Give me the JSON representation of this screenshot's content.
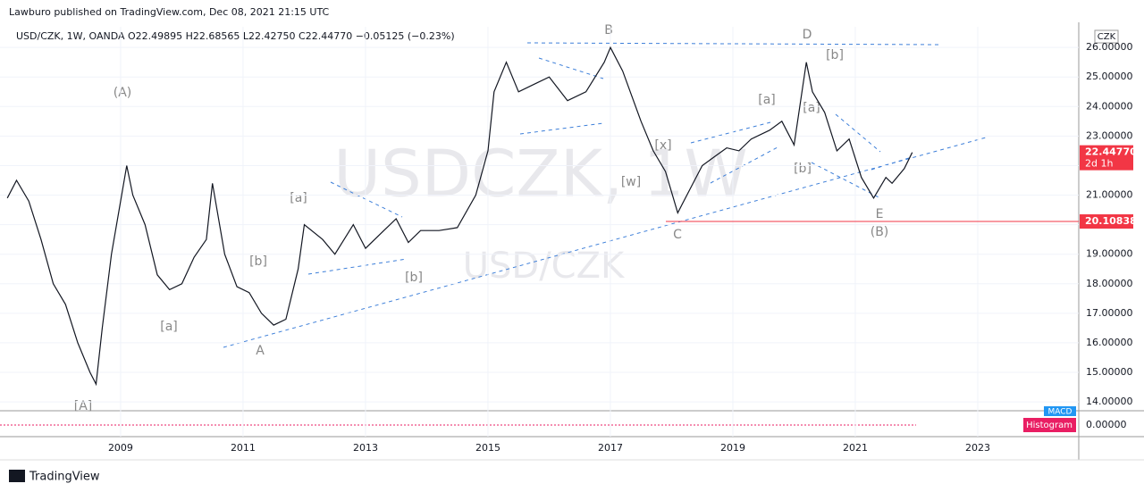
{
  "header": {
    "publisher": "Lawburo published on TradingView.com, Dec 08, 2021 21:15 UTC",
    "symbol_line": "USD/CZK, 1W, OANDA  O22.49895 H22.68565 L22.42750 C22.44770 −0.05125 (−0.23%)",
    "watermark": "USDCZK, 1W",
    "watermark2": "USD/CZK"
  },
  "footer": {
    "brand": "TradingView"
  },
  "annotations": [
    "(A)",
    "[A]",
    "[a]",
    "[b]",
    "A",
    "[a]",
    "[b]",
    "B",
    "C",
    "[w]",
    "[x]",
    "[a]",
    "D",
    "[b]",
    "[a]",
    "[b]",
    "E",
    "(B)"
  ],
  "chart_data": {
    "type": "line",
    "currency": "CZK",
    "color": "#131722",
    "x": [
      2007.15,
      2007.3,
      2007.5,
      2007.7,
      2007.9,
      2008.1,
      2008.3,
      2008.5,
      2008.6,
      2008.7,
      2008.85,
      2009.1,
      2009.2,
      2009.4,
      2009.6,
      2009.8,
      2010.0,
      2010.2,
      2010.4,
      2010.5,
      2010.7,
      2010.9,
      2011.1,
      2011.3,
      2011.5,
      2011.7,
      2011.9,
      2012.0,
      2012.3,
      2012.5,
      2012.8,
      2013.0,
      2013.3,
      2013.5,
      2013.7,
      2013.9,
      2014.2,
      2014.5,
      2014.8,
      2015.0,
      2015.1,
      2015.3,
      2015.5,
      2015.8,
      2016.0,
      2016.3,
      2016.6,
      2016.9,
      2017.0,
      2017.2,
      2017.5,
      2017.7,
      2017.9,
      2018.1,
      2018.3,
      2018.5,
      2018.7,
      2018.9,
      2019.1,
      2019.3,
      2019.6,
      2019.8,
      2020.0,
      2020.2,
      2020.3,
      2020.5,
      2020.7,
      2020.9,
      2021.1,
      2021.3,
      2021.5,
      2021.6,
      2021.8,
      2021.93
    ],
    "values": [
      20.9,
      21.5,
      20.8,
      19.5,
      18.0,
      17.3,
      16.0,
      15.0,
      14.6,
      16.5,
      19.0,
      22.0,
      21.0,
      20.0,
      18.3,
      17.8,
      18.0,
      18.9,
      19.5,
      21.4,
      19.0,
      17.9,
      17.7,
      17.0,
      16.6,
      16.8,
      18.5,
      20.0,
      19.5,
      19.0,
      20.0,
      19.2,
      19.8,
      20.2,
      19.4,
      19.8,
      19.8,
      19.9,
      21.0,
      22.5,
      24.5,
      25.5,
      24.5,
      24.8,
      25.0,
      24.2,
      24.5,
      25.5,
      26.0,
      25.2,
      23.5,
      22.5,
      21.8,
      20.4,
      21.2,
      22.0,
      22.3,
      22.6,
      22.5,
      22.9,
      23.2,
      23.5,
      22.7,
      25.5,
      24.5,
      23.8,
      22.5,
      22.9,
      21.6,
      20.9,
      21.6,
      21.4,
      21.9,
      22.4477
    ],
    "xlim": [
      2007.03,
      2024.65
    ],
    "ylim": [
      13.7,
      26.7
    ],
    "xticks": [
      2009,
      2011,
      2013,
      2015,
      2017,
      2019,
      2021,
      2023
    ],
    "yticks": [
      {
        "value": 14,
        "label": "14.00000"
      },
      {
        "value": 15,
        "label": "15.00000"
      },
      {
        "value": 16,
        "label": "16.00000"
      },
      {
        "value": 17,
        "label": "17.00000"
      },
      {
        "value": 18,
        "label": "18.00000"
      },
      {
        "value": 19,
        "label": "19.00000"
      },
      {
        "value": 20,
        "label": "20.00000"
      },
      {
        "value": 21,
        "label": "21.00000"
      },
      {
        "value": 22,
        "label": "22.00000"
      },
      {
        "value": 23,
        "label": "23.00000"
      },
      {
        "value": 24,
        "label": "24.00000"
      },
      {
        "value": 25,
        "label": "25.00000"
      },
      {
        "value": 26,
        "label": "26.00000"
      }
    ],
    "last_price": {
      "value": 22.4477,
      "label": "22.44770",
      "countdown": "2d 1h"
    },
    "level": {
      "value": 20.10838,
      "label": "20.10838",
      "color": "#f23645"
    },
    "grid": true,
    "indicator": {
      "name": "MACD",
      "histogram": "Histogram",
      "zero": {
        "value": 0,
        "label": "0.00000"
      }
    }
  }
}
